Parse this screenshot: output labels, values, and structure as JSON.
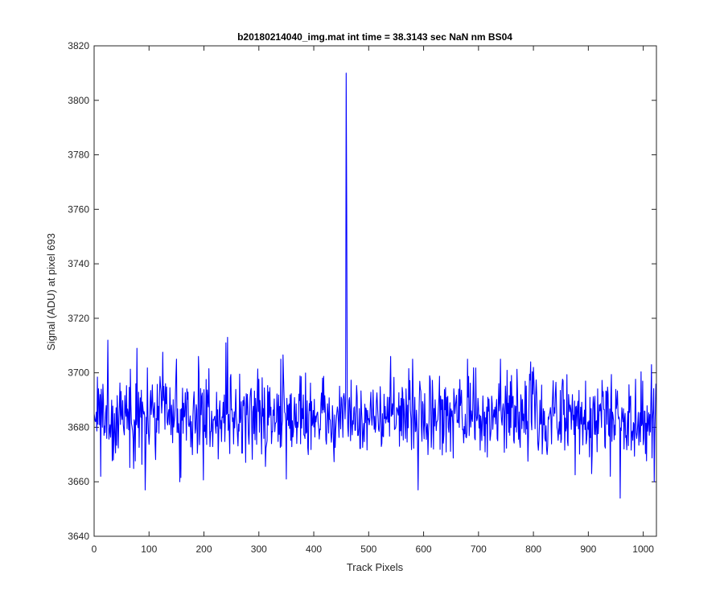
{
  "chart_data": {
    "type": "line",
    "title": "b20180214040_img.mat int time = 38.3143 sec  NaN nm BS04",
    "xlabel": "Track Pixels",
    "ylabel": "Signal (ADU) at pixel 693",
    "xlim": [
      0,
      1024
    ],
    "ylim": [
      3640,
      3820
    ],
    "xticks": [
      0,
      100,
      200,
      300,
      400,
      500,
      600,
      700,
      800,
      900,
      1000
    ],
    "yticks": [
      3640,
      3660,
      3680,
      3700,
      3720,
      3740,
      3760,
      3780,
      3800,
      3820
    ],
    "series": [
      {
        "color": "#0000ff",
        "baseline_mean": 3684,
        "noise_range": [
          3654,
          3713
        ],
        "samples_x": [
          0,
          12,
          25,
          35,
          78,
          93,
          150,
          156,
          190,
          240,
          243,
          340,
          350,
          458,
          459,
          460,
          461,
          540,
          580,
          590,
          680,
          740,
          795,
          800,
          940,
          958,
          1015,
          1020,
          1023
        ],
        "samples_y": [
          3685,
          3662,
          3712,
          3668,
          3709,
          3657,
          3705,
          3660,
          3706,
          3711,
          3713,
          3705,
          3661,
          3690,
          3810,
          3760,
          3690,
          3706,
          3705,
          3657,
          3705,
          3705,
          3704,
          3702,
          3662,
          3654,
          3703,
          3660,
          3696
        ],
        "spike": {
          "x": 459,
          "y": 3810
        }
      }
    ]
  }
}
